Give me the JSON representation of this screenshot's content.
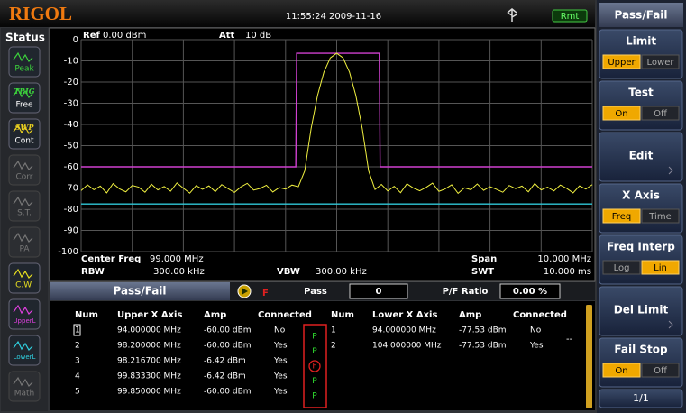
{
  "header": {
    "logo": "RIGOL",
    "time": "11:55:24 2009-11-16",
    "remote": "Rmt"
  },
  "status": {
    "title": "Status",
    "items": [
      {
        "label": "Peak",
        "color": "#3cd43c",
        "active": true
      },
      {
        "tag": "TRIG",
        "label": "Free",
        "color": "#3cd43c",
        "active": true
      },
      {
        "tag": "SWP",
        "label": "Cont",
        "color": "#e8d020",
        "active": true
      },
      {
        "label": "Corr",
        "color": "#777777",
        "active": false
      },
      {
        "label": "S.T.",
        "color": "#777777",
        "active": false
      },
      {
        "label": "PA",
        "color": "#777777",
        "active": false
      },
      {
        "label": "C.W.",
        "color": "#e8e020",
        "active": true
      },
      {
        "label": "UpperL",
        "color": "#e040e0",
        "active": true
      },
      {
        "label": "LowerL",
        "color": "#30d0e0",
        "active": true
      },
      {
        "label": "Math",
        "color": "#777777",
        "active": false
      }
    ]
  },
  "plot": {
    "ref_label": "Ref",
    "ref": "0.00 dBm",
    "att_label": "Att",
    "att": "10 dB",
    "ylim": [
      -100,
      0
    ],
    "yticks": [
      0,
      -10,
      -20,
      -30,
      -40,
      -50,
      -60,
      -70,
      -80,
      -90,
      -100
    ],
    "center_label": "Center Freq",
    "center": "99.000 MHz",
    "span_label": "Span",
    "span": "10.000 MHz",
    "rbw_label": "RBW",
    "rbw": "300.00 kHz",
    "vbw_label": "VBW",
    "vbw": "300.00 kHz",
    "swt_label": "SWT",
    "swt": "10.000 ms",
    "trace_color": "#f0f040",
    "upper_color": "#d040d0",
    "lower_color": "#30c8d8",
    "trace": [
      -71.2,
      -68.5,
      -70.8,
      -69.1,
      -72.3,
      -67.9,
      -70.4,
      -71.8,
      -68.8,
      -69.6,
      -72.0,
      -68.2,
      -70.9,
      -69.3,
      -71.5,
      -67.6,
      -70.1,
      -72.4,
      -68.9,
      -70.6,
      -69.0,
      -71.7,
      -68.4,
      -70.3,
      -72.1,
      -69.5,
      -67.8,
      -71.0,
      -70.2,
      -68.7,
      -71.9,
      -69.8,
      -70.5,
      -68.6,
      -69.4,
      -61.9,
      -41.9,
      -26.4,
      -15.3,
      -8.6,
      -6.4,
      -8.6,
      -15.3,
      -26.4,
      -41.9,
      -61.9,
      -70.7,
      -68.3,
      -71.4,
      -69.2,
      -72.2,
      -68.0,
      -70.0,
      -71.3,
      -69.7,
      -67.7,
      -71.6,
      -70.4,
      -68.5,
      -72.5,
      -69.9,
      -70.8,
      -68.1,
      -71.1,
      -69.4,
      -70.6,
      -72.0,
      -68.8,
      -70.3,
      -69.1,
      -71.8,
      -67.9,
      -70.9,
      -69.6,
      -71.4,
      -68.6,
      -70.2,
      -72.3,
      -69.0,
      -70.5,
      -68.4
    ]
  },
  "pass_fail": {
    "title": "Pass/Fail",
    "fail_flag": "F",
    "pass_label": "Pass",
    "pass_count": "0",
    "ratio_label": "P/F Ratio",
    "ratio": "0.00 %",
    "headers": [
      "Num",
      "Upper X Axis",
      "Amp",
      "Connected",
      "Num",
      "Lower X Axis",
      "Amp",
      "Connected"
    ],
    "upper_rows": [
      [
        "1",
        "94.000000 MHz",
        "-60.00 dBm",
        "No"
      ],
      [
        "2",
        "98.200000 MHz",
        "-60.00 dBm",
        "Yes"
      ],
      [
        "3",
        "98.216700 MHz",
        "-6.42 dBm",
        "Yes"
      ],
      [
        "4",
        "99.833300 MHz",
        "-6.42 dBm",
        "Yes"
      ],
      [
        "5",
        "99.850000 MHz",
        "-60.00 dBm",
        "Yes"
      ]
    ],
    "lower_rows": [
      [
        "1",
        "94.000000 MHz",
        "-77.53 dBm",
        "No"
      ],
      [
        "2",
        "104.000000 MHz",
        "-77.53 dBm",
        "Yes"
      ]
    ],
    "more": "--",
    "results": [
      "P",
      "P",
      "F",
      "P",
      "P"
    ]
  },
  "menu": {
    "title": "Pass/Fail",
    "buttons": [
      {
        "label": "Limit",
        "options": [
          "Upper",
          "Lower"
        ],
        "selected": 0
      },
      {
        "label": "Test",
        "options": [
          "On",
          "Off"
        ],
        "selected": 0
      },
      {
        "label": "Edit"
      },
      {
        "label": "X Axis",
        "options": [
          "Freq",
          "Time"
        ],
        "selected": 0
      },
      {
        "label": "Freq Interp",
        "options": [
          "Log",
          "Lin"
        ],
        "selected": 1
      },
      {
        "label": "Del Limit"
      },
      {
        "label": "Fail Stop",
        "options": [
          "On",
          "Off"
        ],
        "selected": 0
      }
    ],
    "page": "1/1"
  }
}
